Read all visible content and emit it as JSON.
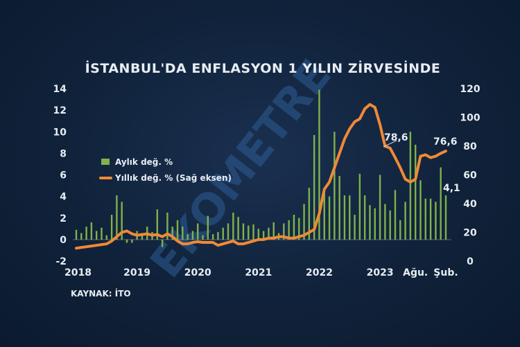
{
  "chart_data": {
    "type": "bar+line",
    "title": "İSTANBUL'DA ENFLASYON 1 YILIN ZİRVESİNDE",
    "source": "KAYNAK: İTO",
    "watermark": "EKOMETRE",
    "x_tick_labels": [
      "2018",
      "2019",
      "2020",
      "2021",
      "2022",
      "2023",
      "Ağu.",
      "Şub."
    ],
    "y_left": {
      "range": [
        -2,
        14
      ],
      "ticks": [
        "-2",
        "0",
        "2",
        "4",
        "6",
        "8",
        "10",
        "12",
        "14"
      ]
    },
    "y_right": {
      "range": [
        0,
        120
      ],
      "ticks": [
        "0",
        "20",
        "40",
        "60",
        "80",
        "100",
        "120"
      ]
    },
    "months": [
      "2018-01",
      "2018-02",
      "2018-03",
      "2018-04",
      "2018-05",
      "2018-06",
      "2018-07",
      "2018-08",
      "2018-09",
      "2018-10",
      "2018-11",
      "2018-12",
      "2019-01",
      "2019-02",
      "2019-03",
      "2019-04",
      "2019-05",
      "2019-06",
      "2019-07",
      "2019-08",
      "2019-09",
      "2019-10",
      "2019-11",
      "2019-12",
      "2020-01",
      "2020-02",
      "2020-03",
      "2020-04",
      "2020-05",
      "2020-06",
      "2020-07",
      "2020-08",
      "2020-09",
      "2020-10",
      "2020-11",
      "2020-12",
      "2021-01",
      "2021-02",
      "2021-03",
      "2021-04",
      "2021-05",
      "2021-06",
      "2021-07",
      "2021-08",
      "2021-09",
      "2021-10",
      "2021-11",
      "2021-12",
      "2022-01",
      "2022-02",
      "2022-03",
      "2022-04",
      "2022-05",
      "2022-06",
      "2022-07",
      "2022-08",
      "2022-09",
      "2022-10",
      "2022-11",
      "2022-12",
      "2023-01",
      "2023-02",
      "2023-03",
      "2023-04",
      "2023-05",
      "2023-06",
      "2023-07",
      "2023-08",
      "2023-09",
      "2023-10",
      "2023-11",
      "2023-12",
      "2024-01",
      "2024-02"
    ],
    "series": [
      {
        "name": "Aylık değ. %",
        "kind": "bar",
        "axis": "left",
        "color": "#7fb24a",
        "values": [
          0.9,
          0.6,
          1.2,
          1.6,
          0.8,
          1.1,
          0.4,
          2.3,
          4.1,
          3.5,
          -0.3,
          -0.3,
          0.8,
          0.6,
          1.2,
          0.7,
          2.8,
          -0.7,
          2.5,
          1.2,
          1.8,
          1.2,
          0.5,
          0.8,
          1.5,
          0.4,
          2.2,
          0.5,
          0.7,
          1.1,
          1.5,
          2.5,
          2.1,
          1.5,
          1.3,
          1.4,
          1.0,
          0.8,
          1.1,
          1.6,
          0.6,
          1.5,
          1.8,
          2.3,
          2.0,
          3.3,
          4.8,
          9.7,
          13.9,
          4.6,
          4.0,
          10.0,
          5.9,
          4.1,
          4.1,
          2.3,
          6.1,
          4.1,
          3.2,
          2.9,
          6.0,
          3.3,
          2.7,
          4.6,
          1.8,
          3.5,
          10.0,
          8.8,
          5.5,
          3.8,
          3.8,
          3.5,
          6.7,
          4.1
        ]
      },
      {
        "name": "Yıllık değ. % (Sağ eksen)",
        "kind": "line",
        "axis": "right",
        "color": "#f08a35",
        "values": [
          9,
          9.5,
          10,
          10.5,
          11,
          11.5,
          12,
          14,
          17,
          20,
          21,
          19,
          18,
          18.5,
          19,
          18,
          18.5,
          17,
          19,
          17,
          14,
          12,
          12,
          13,
          13.5,
          13,
          13,
          13,
          11,
          12,
          13,
          14,
          12,
          12,
          13,
          14,
          15,
          15,
          16,
          16,
          17,
          17,
          16,
          16,
          17,
          18,
          20,
          22,
          33,
          50,
          55,
          65,
          75,
          85,
          92,
          97,
          99,
          106,
          109,
          107,
          95,
          80,
          78.6,
          72,
          65,
          57,
          55,
          57,
          73,
          74,
          72,
          73,
          75,
          76.6
        ]
      }
    ],
    "annotations": [
      {
        "text": "78,6",
        "month": "2023-03",
        "value": 78.6
      },
      {
        "text": "76,6",
        "month": "2024-02",
        "value": 76.6
      },
      {
        "text": "4,1",
        "month": "2024-02",
        "value": 4.1
      }
    ],
    "legend": {
      "placement": "left, mid-height"
    }
  }
}
